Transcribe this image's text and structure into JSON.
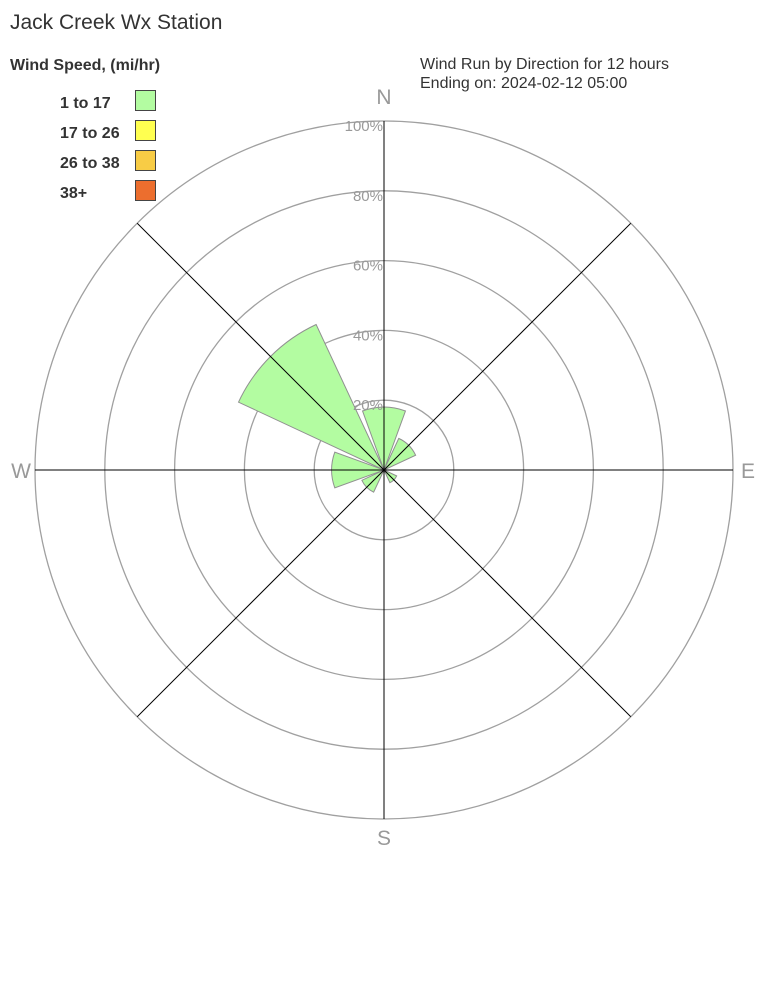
{
  "chart_data": {
    "type": "wind-rose",
    "title": "Jack Creek Wx Station",
    "subtitle_lines": [
      "Wind Run by Direction for 12 hours",
      "Ending on: 2024-02-12 05:00"
    ],
    "legend_title": "Wind Speed, (mi/hr)",
    "legend_placement": "top-left",
    "legend": [
      {
        "label": "1 to 17",
        "color": "#b3fca1"
      },
      {
        "label": "17 to 26",
        "color": "#ffff50"
      },
      {
        "label": "26 to 38",
        "color": "#f8cc45"
      },
      {
        "label": "38+",
        "color": "#ec6e2e"
      }
    ],
    "compass_labels": {
      "N": "N",
      "E": "E",
      "S": "S",
      "W": "W"
    },
    "radial_ticks": [
      "20%",
      "40%",
      "60%",
      "80%",
      "100%"
    ],
    "radial_tick_values": [
      20,
      40,
      60,
      80,
      100
    ],
    "rmax": 100,
    "directions": [
      "N",
      "NE",
      "E",
      "SE",
      "S",
      "SW",
      "W",
      "NW"
    ],
    "direction_degrees": [
      0,
      45,
      90,
      135,
      180,
      225,
      270,
      315
    ],
    "series": [
      {
        "speed_bin": "1 to 17",
        "values": [
          18,
          10,
          0,
          4,
          0,
          7,
          15,
          46
        ]
      }
    ],
    "colors": {
      "ring": "#a0a0a0",
      "spoke": "#000000",
      "wedge_stroke": "#909090",
      "label": "#999999",
      "text": "#333333"
    }
  }
}
